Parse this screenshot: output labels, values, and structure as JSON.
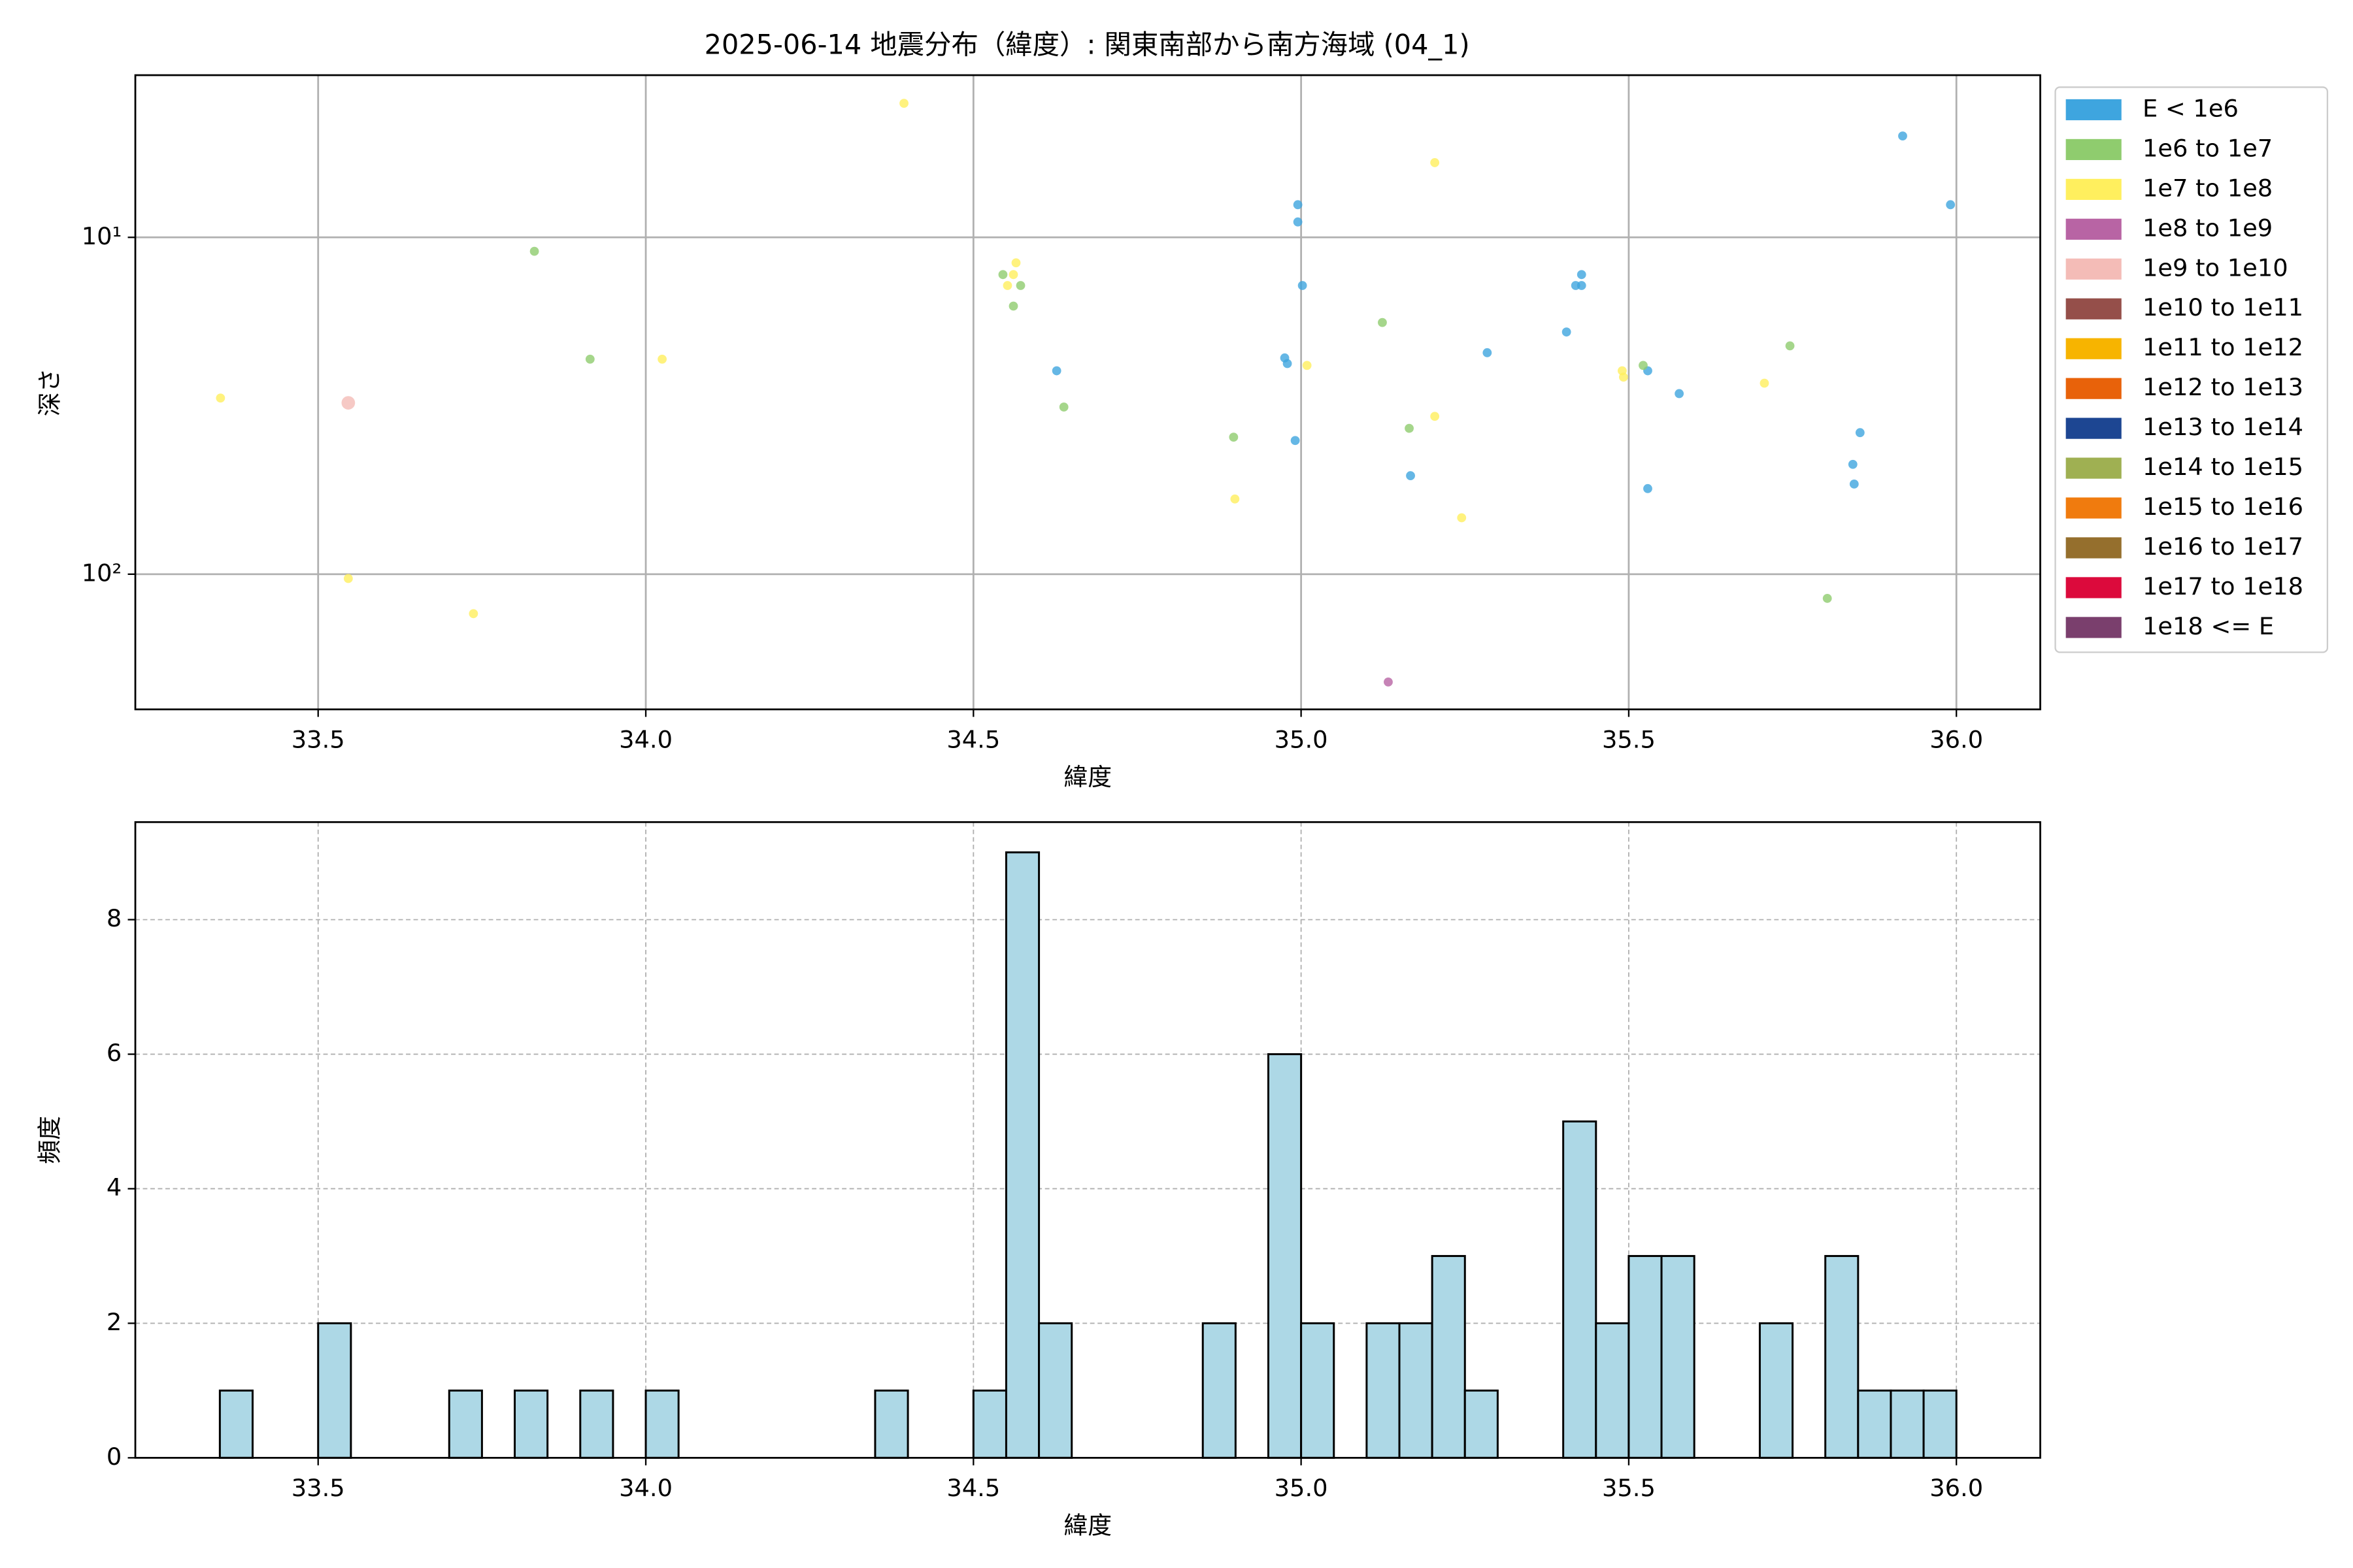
{
  "chart_data": [
    {
      "type": "scatter",
      "title": "2025-06-14 地震分布（緯度）: 関東南部から南方海域 (04_1)",
      "xlabel": "緯度",
      "ylabel": "深さ",
      "xlim": [
        33.221,
        36.128
      ],
      "xticks": [
        33.5,
        {
          "value": 34,
          "label": "34.0"
        },
        34.5,
        {
          "value": 35,
          "label": "35.0"
        },
        35.5,
        {
          "value": 36,
          "label": "36.0"
        }
      ],
      "ylim": [
        3.3,
        252
      ],
      "yscale": "log",
      "yinvert": true,
      "yticks": [
        {
          "value": 10,
          "label": "10¹"
        },
        {
          "value": 100,
          "label": "10²"
        }
      ],
      "grid": true,
      "legend": "outside upper right",
      "series": [
        {
          "name": "E < 1e6",
          "color": "#3ea5df",
          "x": [
            34.627,
            34.975,
            34.979,
            34.991,
            34.995,
            34.995,
            35.002,
            35.167,
            35.284,
            35.405,
            35.419,
            35.428,
            35.428,
            35.529,
            35.529,
            35.577,
            35.842,
            35.844,
            35.853,
            35.918,
            35.991
          ],
          "y": [
            24.9,
            22.8,
            23.7,
            40.1,
            8.0,
            9.0,
            13.9,
            51,
            22,
            19.1,
            13.9,
            12.9,
            13.9,
            24.9,
            55.7,
            29.1,
            47.2,
            54,
            38,
            5.0,
            8.0
          ]
        },
        {
          "name": "1e6 to 1e7",
          "color": "#8fcc6e",
          "x": [
            33.83,
            33.915,
            34.545,
            34.572,
            34.561,
            34.638,
            34.897,
            35.124,
            35.165,
            35.522,
            35.746,
            35.803
          ],
          "y": [
            11.0,
            23,
            12.9,
            13.9,
            16.0,
            31.9,
            39.2,
            17.9,
            36.9,
            24,
            21,
            118
          ]
        },
        {
          "name": "1e7 to 1e8",
          "color": "#ffef5e",
          "x": [
            33.351,
            33.546,
            33.737,
            34.025,
            34.394,
            34.552,
            34.565,
            34.561,
            34.899,
            35.009,
            35.204,
            35.204,
            35.245,
            35.49,
            35.492,
            35.707
          ],
          "y": [
            30,
            103,
            131,
            23,
            4.0,
            13.9,
            11.9,
            12.9,
            59.8,
            24,
            6.0,
            34,
            68,
            24.9,
            26,
            27.1
          ]
        },
        {
          "name": "1e8 to 1e9",
          "color": "#b864a4",
          "x": [
            35.133
          ],
          "y": [
            209
          ]
        },
        {
          "name": "1e9 to 1e10",
          "color": "#f4bcb7",
          "x": [
            33.546
          ],
          "y": [
            31
          ]
        },
        {
          "name": "1e10 to 1e11",
          "color": "#954f4a",
          "x": [],
          "y": []
        },
        {
          "name": "1e11 to 1e12",
          "color": "#f7b400",
          "x": [],
          "y": []
        },
        {
          "name": "1e12 to 1e13",
          "color": "#e8620a",
          "x": [],
          "y": []
        },
        {
          "name": "1e13 to 1e14",
          "color": "#1d4692",
          "x": [],
          "y": []
        },
        {
          "name": "1e14 to 1e15",
          "color": "#9fb052",
          "x": [],
          "y": []
        },
        {
          "name": "1e15 to 1e16",
          "color": "#f07b0e",
          "x": [],
          "y": []
        },
        {
          "name": "1e16 to 1e17",
          "color": "#956f2d",
          "x": [],
          "y": []
        },
        {
          "name": "1e17 to 1e18",
          "color": "#dc0a3c",
          "x": [],
          "y": []
        },
        {
          "name": "1e18 <= E",
          "color": "#7a3f6d",
          "x": [],
          "y": []
        }
      ]
    },
    {
      "type": "histogram",
      "xlabel": "緯度",
      "ylabel": "頻度",
      "color": "#add8e6",
      "edgecolor": "#000000",
      "xlim": [
        33.221,
        36.128
      ],
      "xticks": [
        33.5,
        {
          "value": 34,
          "label": "34.0"
        },
        34.5,
        {
          "value": 35,
          "label": "35.0"
        },
        35.5,
        {
          "value": 36,
          "label": "36.0"
        }
      ],
      "ylim": [
        0,
        9.45
      ],
      "yticks": [
        0,
        2,
        4,
        6,
        8
      ],
      "grid": true,
      "bins": [
        33.35,
        33.4,
        33.45,
        33.5,
        33.55,
        33.6,
        33.65,
        33.7,
        33.75,
        33.8,
        33.85,
        33.9,
        33.95,
        34.0,
        34.05,
        34.1,
        34.15,
        34.2,
        34.25,
        34.3,
        34.35,
        34.4,
        34.45,
        34.5,
        34.55,
        34.6,
        34.65,
        34.7,
        34.75,
        34.8,
        34.85,
        34.9,
        34.95,
        35.0,
        35.05,
        35.1,
        35.15,
        35.2,
        35.25,
        35.3,
        35.35,
        35.4,
        35.45,
        35.5,
        35.55,
        35.6,
        35.65,
        35.7,
        35.75,
        35.8,
        35.85,
        35.9,
        35.95,
        36.0
      ],
      "counts": [
        1,
        0,
        0,
        2,
        0,
        0,
        0,
        1,
        0,
        1,
        0,
        1,
        0,
        1,
        0,
        0,
        0,
        0,
        0,
        0,
        1,
        0,
        0,
        1,
        9,
        2,
        0,
        0,
        0,
        0,
        2,
        0,
        6,
        2,
        0,
        2,
        2,
        3,
        1,
        0,
        0,
        5,
        2,
        3,
        3,
        0,
        0,
        2,
        0,
        3,
        1,
        1,
        1
      ]
    }
  ]
}
